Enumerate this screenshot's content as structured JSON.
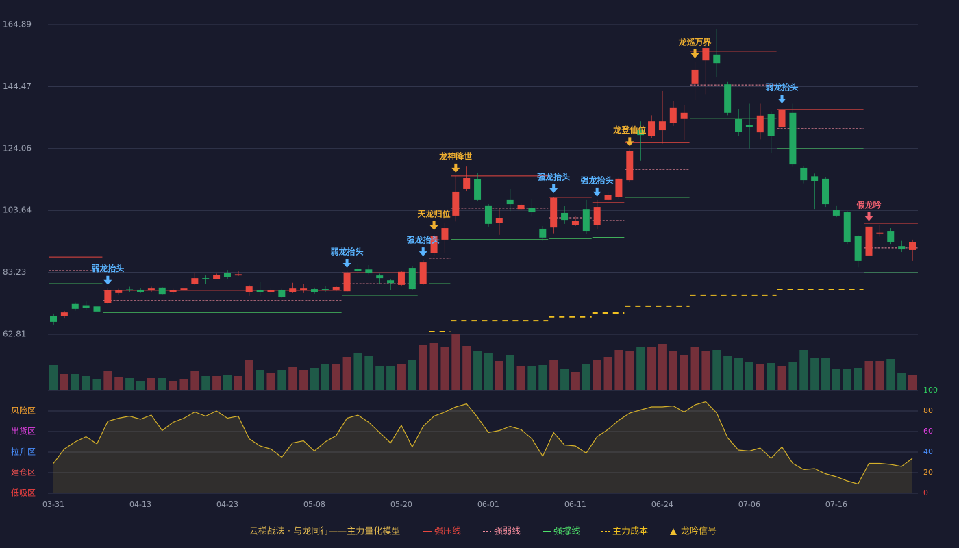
{
  "chart_data": {
    "type": "candlestick",
    "categories": [
      "03-31",
      null,
      null,
      null,
      null,
      null,
      null,
      null,
      "04-13",
      null,
      null,
      null,
      null,
      null,
      null,
      null,
      "04-23",
      null,
      null,
      null,
      null,
      null,
      null,
      null,
      "05-08",
      null,
      null,
      null,
      null,
      null,
      null,
      null,
      "05-20",
      null,
      null,
      null,
      null,
      null,
      null,
      null,
      "06-01",
      null,
      null,
      null,
      null,
      null,
      null,
      null,
      "06-11",
      null,
      null,
      null,
      null,
      null,
      null,
      null,
      "06-24",
      null,
      null,
      null,
      null,
      null,
      null,
      null,
      "07-06",
      null,
      null,
      null,
      null,
      null,
      null,
      null,
      "07-16",
      null,
      null,
      null,
      null,
      null,
      null,
      null
    ],
    "ohlc": {
      "open": [
        68.7,
        68.7,
        72.8,
        72.4,
        72.0,
        73.2,
        76.4,
        77.6,
        77.5,
        77.3,
        78.2,
        76.6,
        77.3,
        79.5,
        81.3,
        81.1,
        83.1,
        82.2,
        76.6,
        77.3,
        76.6,
        77.3,
        76.8,
        77.3,
        77.7,
        77.7,
        77.5,
        77.0,
        84.4,
        84.2,
        82.2,
        80.6,
        79.1,
        84.7,
        79.5,
        89.5,
        94.0,
        101.9,
        110.7,
        113.9,
        105.3,
        99.4,
        107.1,
        104.1,
        104.4,
        97.6,
        98.0,
        102.8,
        98.9,
        104.1,
        98.9,
        107.1,
        108.2,
        113.6,
        130.1,
        128.1,
        130.1,
        132.4,
        134.0,
        145.5,
        153.1,
        155.0,
        145.2,
        133.9,
        131.9,
        129.4,
        135.3,
        131.0,
        135.8,
        117.7,
        114.9,
        114.1,
        103.7,
        103.0,
        95.1,
        88.8,
        96.1,
        96.9,
        91.9,
        90.6
      ],
      "high": [
        69.6,
        70.5,
        73.3,
        73.6,
        72.4,
        78.0,
        77.8,
        78.5,
        78.0,
        78.5,
        78.4,
        77.8,
        78.4,
        83.0,
        82.2,
        82.8,
        84.0,
        83.6,
        79.1,
        80.0,
        78.0,
        77.8,
        79.8,
        79.5,
        78.2,
        78.6,
        78.8,
        83.6,
        85.8,
        85.6,
        82.8,
        81.1,
        83.8,
        85.3,
        87.4,
        96.0,
        99.6,
        115.0,
        118.1,
        116.1,
        105.7,
        104.3,
        110.7,
        106.2,
        107.5,
        98.5,
        108.2,
        105.1,
        101.6,
        107.1,
        107.1,
        109.6,
        114.5,
        123.7,
        133.0,
        135.0,
        143.0,
        139.8,
        138.4,
        152.7,
        158.1,
        163.5,
        146.2,
        137.1,
        138.8,
        138.8,
        136.3,
        137.8,
        138.8,
        118.3,
        115.8,
        114.7,
        105.3,
        103.4,
        95.5,
        99.0,
        98.9,
        97.8,
        93.6,
        94.0
      ],
      "low": [
        66.0,
        68.2,
        70.6,
        70.9,
        69.9,
        72.8,
        76.0,
        76.8,
        76.4,
        76.8,
        75.8,
        76.2,
        77.0,
        79.1,
        79.5,
        80.9,
        81.0,
        82.0,
        75.5,
        75.5,
        75.8,
        74.8,
        76.4,
        76.4,
        76.2,
        76.8,
        77.0,
        76.6,
        82.6,
        82.6,
        79.5,
        77.3,
        78.6,
        77.3,
        79.1,
        88.6,
        89.5,
        100.0,
        110.0,
        106.6,
        98.3,
        95.6,
        103.4,
        103.9,
        101.6,
        93.6,
        96.1,
        99.2,
        98.5,
        96.0,
        97.6,
        106.6,
        107.5,
        113.0,
        120.0,
        127.6,
        125.7,
        131.5,
        126.9,
        140.0,
        142.0,
        147.6,
        135.0,
        128.3,
        124.1,
        127.1,
        122.6,
        130.1,
        118.0,
        112.6,
        104.1,
        104.8,
        101.4,
        92.6,
        84.9,
        88.0,
        95.0,
        92.6,
        89.9,
        87.0
      ],
      "close": [
        66.9,
        70.0,
        71.2,
        71.6,
        70.3,
        77.3,
        77.3,
        77.3,
        76.8,
        77.9,
        76.1,
        77.3,
        77.9,
        81.3,
        80.9,
        82.4,
        81.6,
        82.6,
        78.6,
        76.8,
        77.3,
        75.2,
        77.9,
        77.9,
        76.6,
        77.3,
        78.4,
        83.1,
        83.6,
        82.9,
        81.3,
        79.7,
        83.4,
        77.7,
        86.5,
        95.3,
        97.8,
        109.8,
        114.3,
        107.1,
        99.2,
        101.2,
        105.7,
        105.5,
        103.0,
        94.7,
        107.8,
        100.5,
        100.3,
        96.9,
        104.8,
        108.7,
        114.1,
        123.3,
        128.5,
        133.0,
        133.0,
        137.6,
        135.8,
        150.0,
        157.2,
        152.2,
        135.8,
        129.6,
        131.2,
        134.9,
        128.1,
        136.9,
        118.8,
        113.6,
        113.4,
        105.7,
        101.9,
        93.3,
        87.0,
        98.3,
        96.3,
        93.3,
        90.8,
        93.3
      ]
    },
    "up_color": "#e8473f",
    "down_color": "#22a862",
    "ylim": [
      62.81,
      164.89
    ],
    "yticks": [
      62.81,
      83.23,
      103.64,
      124.06,
      144.47,
      164.89
    ],
    "grid": true,
    "volume": {
      "values": [
        37,
        24,
        24,
        21,
        16,
        29,
        20,
        18,
        14,
        18,
        18,
        14,
        16,
        29,
        21,
        21,
        22,
        21,
        44,
        30,
        26,
        30,
        34,
        30,
        33,
        39,
        39,
        49,
        55,
        50,
        35,
        35,
        39,
        44,
        66,
        70,
        64,
        82,
        65,
        58,
        54,
        43,
        52,
        35,
        35,
        37,
        44,
        32,
        27,
        39,
        44,
        49,
        59,
        58,
        63,
        63,
        68,
        57,
        52,
        64,
        57,
        59,
        50,
        47,
        41,
        38,
        40,
        36,
        42,
        59,
        48,
        48,
        32,
        31,
        33,
        43,
        43,
        46,
        25,
        22
      ],
      "ylim": [
        0,
        82
      ],
      "up_color": "#74303a",
      "down_color": "#1f5a48"
    },
    "oscillator": {
      "values": [
        29,
        43,
        50,
        55,
        48,
        70,
        73,
        75,
        72,
        76,
        61,
        69,
        73,
        79,
        75,
        80,
        73,
        75,
        53,
        46,
        43,
        35,
        49,
        51,
        41,
        50,
        56,
        73,
        76,
        69,
        59,
        49,
        66,
        45,
        65,
        75,
        79,
        84,
        87,
        74,
        59,
        61,
        65,
        62,
        53,
        36,
        59,
        47,
        46,
        39,
        55,
        62,
        71,
        78,
        81,
        84,
        84,
        85,
        79,
        86,
        89,
        78,
        54,
        42,
        41,
        44,
        34,
        45,
        29,
        23,
        24,
        19,
        16,
        12,
        9,
        29,
        29,
        28,
        26,
        34
      ],
      "color": "#d4b02a",
      "ylim": [
        0,
        100
      ],
      "yticks": [
        0,
        20,
        40,
        60,
        80,
        100
      ],
      "ytick_colors": [
        "#f04040",
        "#f0a030",
        "#4a90ff",
        "#e040e0",
        "#f0a030",
        "#30d060"
      ],
      "zones": [
        {
          "label": "风险区",
          "value": 80,
          "color": "#f0a030"
        },
        {
          "label": "出货区",
          "value": 60,
          "color": "#e040e0"
        },
        {
          "label": "拉升区",
          "value": 40,
          "color": "#4a90ff"
        },
        {
          "label": "建仓区",
          "value": 20,
          "color": "#f05050"
        },
        {
          "label": "低吸区",
          "value": 0,
          "color": "#f04040"
        }
      ]
    },
    "levels": [
      {
        "name": "强压线",
        "color": "#e8473f",
        "dash": false,
        "segments": [
          {
            "from": 0,
            "to": 4,
            "value": 88.3
          },
          {
            "from": 5,
            "to": 26,
            "value": 77.3
          },
          {
            "from": 27,
            "to": 33,
            "value": 83.1
          },
          {
            "from": 37,
            "to": 45,
            "value": 115.0
          },
          {
            "from": 46,
            "to": 49,
            "value": 108.0
          },
          {
            "from": 50,
            "to": 52,
            "value": 106.2
          },
          {
            "from": 53,
            "to": 58,
            "value": 126.0
          },
          {
            "from": 59,
            "to": 66,
            "value": 156.1
          },
          {
            "from": 67,
            "to": 74,
            "value": 136.9
          },
          {
            "from": 75,
            "to": 79,
            "value": 99.4
          }
        ]
      },
      {
        "name": "强弱线",
        "color": "#f08a9a",
        "dash": true,
        "segments": [
          {
            "from": 0,
            "to": 4,
            "value": 83.8
          },
          {
            "from": 5,
            "to": 26,
            "value": 73.9
          },
          {
            "from": 27,
            "to": 33,
            "value": 79.5
          },
          {
            "from": 35,
            "to": 36,
            "value": 87.9
          },
          {
            "from": 37,
            "to": 45,
            "value": 104.4
          },
          {
            "from": 46,
            "to": 49,
            "value": 101.2
          },
          {
            "from": 50,
            "to": 52,
            "value": 100.3
          },
          {
            "from": 53,
            "to": 58,
            "value": 117.2
          },
          {
            "from": 59,
            "to": 66,
            "value": 145.0
          },
          {
            "from": 67,
            "to": 74,
            "value": 130.6
          },
          {
            "from": 75,
            "to": 79,
            "value": 91.3
          }
        ]
      },
      {
        "name": "强撑线",
        "color": "#4ee06a",
        "dash": false,
        "segments": [
          {
            "from": 0,
            "to": 4,
            "value": 79.5
          },
          {
            "from": 5,
            "to": 26,
            "value": 70.0
          },
          {
            "from": 27,
            "to": 33,
            "value": 75.7
          },
          {
            "from": 35,
            "to": 36,
            "value": 79.5
          },
          {
            "from": 37,
            "to": 45,
            "value": 94.0
          },
          {
            "from": 46,
            "to": 49,
            "value": 94.4
          },
          {
            "from": 50,
            "to": 52,
            "value": 94.7
          },
          {
            "from": 53,
            "to": 58,
            "value": 108.0
          },
          {
            "from": 59,
            "to": 66,
            "value": 133.9
          },
          {
            "from": 67,
            "to": 74,
            "value": 124.0
          },
          {
            "from": 75,
            "to": 79,
            "value": 83.1
          }
        ]
      },
      {
        "name": "主力成本",
        "color": "#f0c020",
        "dash": true,
        "segments": [
          {
            "from": 35,
            "to": 36,
            "value": 63.7
          },
          {
            "from": 37,
            "to": 45,
            "value": 67.3
          },
          {
            "from": 46,
            "to": 49,
            "value": 68.5
          },
          {
            "from": 50,
            "to": 52,
            "value": 69.8
          },
          {
            "from": 53,
            "to": 58,
            "value": 72.1
          },
          {
            "from": 59,
            "to": 66,
            "value": 75.7
          },
          {
            "from": 67,
            "to": 74,
            "value": 77.5
          }
        ]
      }
    ],
    "signals": [
      {
        "label": "弱龙抬头",
        "index": 5,
        "color": "#5ab4ff"
      },
      {
        "label": "弱龙抬头",
        "index": 27,
        "color": "#5ab4ff"
      },
      {
        "label": "强龙抬头",
        "index": 34,
        "color": "#5ab4ff"
      },
      {
        "label": "天龙归位",
        "index": 35,
        "color": "#f0b030"
      },
      {
        "label": "龙神降世",
        "index": 37,
        "color": "#f0b030"
      },
      {
        "label": "强龙抬头",
        "index": 46,
        "color": "#5ab4ff"
      },
      {
        "label": "强龙抬头",
        "index": 50,
        "color": "#5ab4ff"
      },
      {
        "label": "龙登仙位",
        "index": 53,
        "color": "#f0b030"
      },
      {
        "label": "龙巡万界",
        "index": 59,
        "color": "#f0b030"
      },
      {
        "label": "弱龙抬头",
        "index": 67,
        "color": "#5ab4ff"
      },
      {
        "label": "假龙吟",
        "index": 75,
        "color": "#f06070"
      }
    ],
    "legend_title": "云梯战法 · 与龙同行——主力量化模型",
    "signal_legend": {
      "label": "龙吟信号",
      "color": "#f0c030"
    }
  }
}
